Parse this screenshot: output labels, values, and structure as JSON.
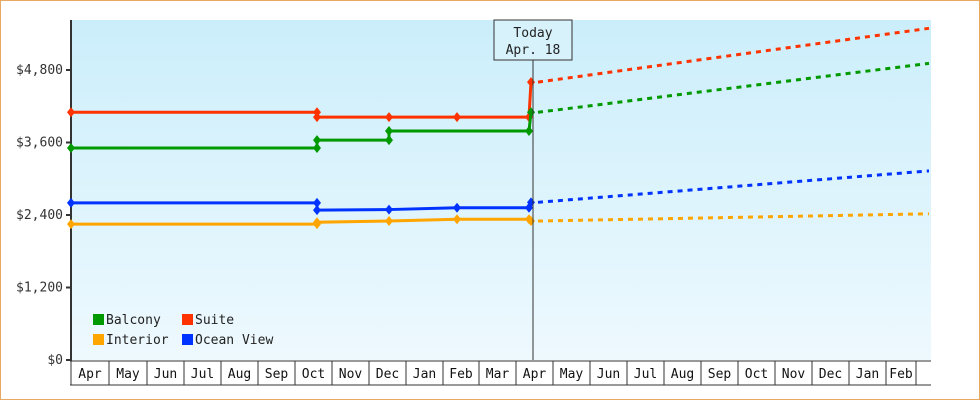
{
  "chart_data": {
    "type": "line",
    "title": "",
    "xlabel": "",
    "ylabel": "",
    "ylim": [
      0,
      5800
    ],
    "yticks": [
      "$0",
      "$1,200",
      "$2,400",
      "$3,600",
      "$4,800"
    ],
    "ytick_values": [
      0,
      1200,
      2400,
      3600,
      4800
    ],
    "x_months": [
      "Apr",
      "May",
      "Jun",
      "Jul",
      "Aug",
      "Sep",
      "Oct",
      "Nov",
      "Dec",
      "Jan",
      "Feb",
      "Mar",
      "Apr",
      "May",
      "Jun",
      "Jul",
      "Aug",
      "Sep",
      "Oct",
      "Nov",
      "Dec",
      "Jan",
      "Feb"
    ],
    "today_marker": {
      "line1": "Today",
      "line2": "Apr. 18"
    },
    "legend": [
      {
        "name": "Balcony",
        "color": "#009900"
      },
      {
        "name": "Suite",
        "color": "#ff3300"
      },
      {
        "name": "Interior",
        "color": "#ffa500"
      },
      {
        "name": "Ocean View",
        "color": "#0033ff"
      }
    ],
    "series": [
      {
        "name": "Suite",
        "color": "#ff3300",
        "history": [
          [
            "Apr",
            4100
          ],
          [
            "Oct",
            4100
          ],
          [
            "Oct",
            4020
          ],
          [
            "Dec",
            4020
          ],
          [
            "Feb",
            4020
          ],
          [
            "Apr",
            4020
          ],
          [
            "Apr",
            4600
          ]
        ],
        "projection": [
          [
            "Apr",
            4600
          ],
          [
            "Feb(+1)",
            5490
          ]
        ]
      },
      {
        "name": "Balcony",
        "color": "#009900",
        "history": [
          [
            "Apr",
            3510
          ],
          [
            "Oct",
            3510
          ],
          [
            "Oct",
            3640
          ],
          [
            "Dec",
            3640
          ],
          [
            "Dec",
            3790
          ],
          [
            "Apr",
            3790
          ],
          [
            "Apr",
            4100
          ]
        ],
        "projection": [
          [
            "Apr",
            4100
          ],
          [
            "Feb(+1)",
            4910
          ]
        ]
      },
      {
        "name": "Ocean View",
        "color": "#0033ff",
        "history": [
          [
            "Apr",
            2600
          ],
          [
            "Oct",
            2600
          ],
          [
            "Oct",
            2480
          ],
          [
            "Dec",
            2490
          ],
          [
            "Feb",
            2520
          ],
          [
            "Apr",
            2520
          ],
          [
            "Apr",
            2610
          ]
        ],
        "projection": [
          [
            "Apr",
            2610
          ],
          [
            "Feb(+1)",
            3130
          ]
        ]
      },
      {
        "name": "Interior",
        "color": "#ffa500",
        "history": [
          [
            "Apr",
            2250
          ],
          [
            "Oct",
            2250
          ],
          [
            "Oct",
            2280
          ],
          [
            "Dec",
            2300
          ],
          [
            "Feb",
            2330
          ],
          [
            "Apr",
            2330
          ],
          [
            "Apr",
            2300
          ]
        ],
        "projection": [
          [
            "Apr",
            2300
          ],
          [
            "Feb(+1)",
            2420
          ]
        ]
      }
    ]
  }
}
